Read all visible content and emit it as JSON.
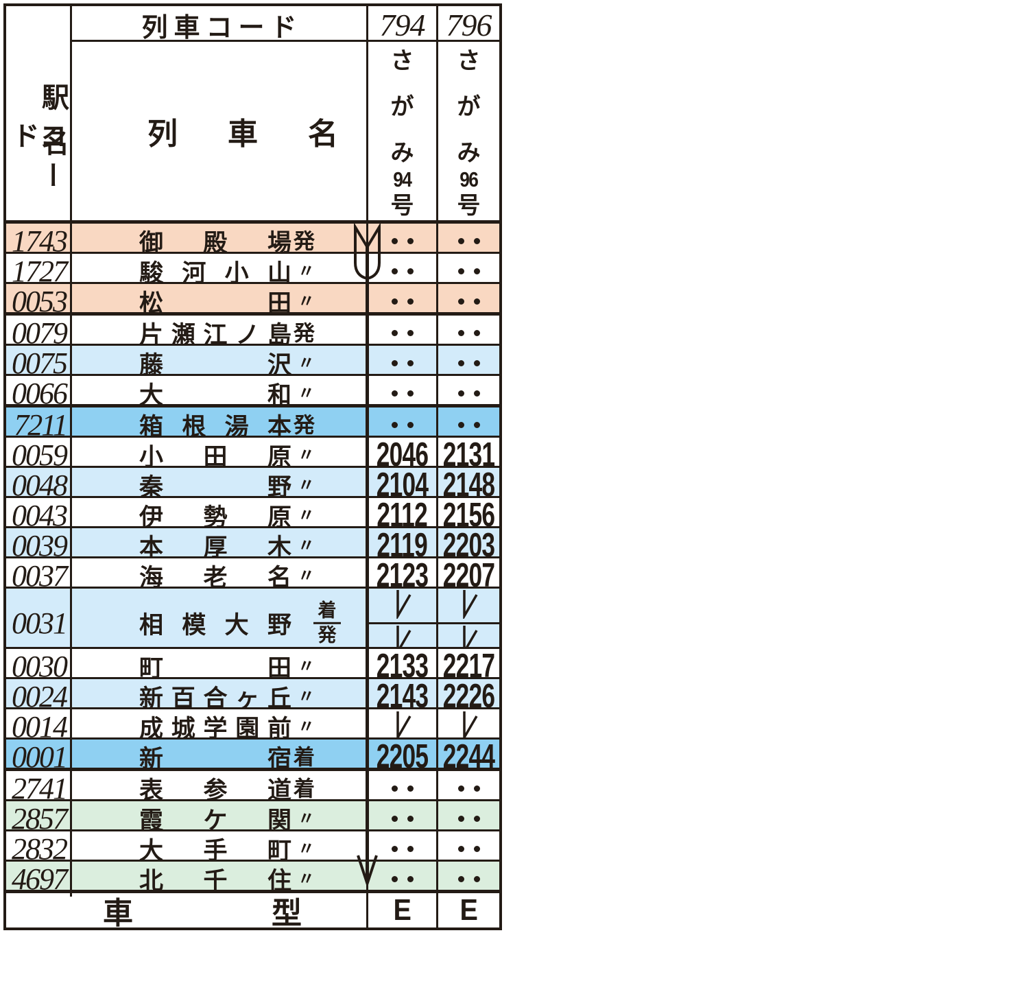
{
  "colors": {
    "ink": "#231b15",
    "row_white": "#ffffff",
    "row_peach": "#f9d8c2",
    "row_light_blue": "#d3ebfa",
    "row_blue": "#8fd0f2",
    "row_green": "#dbeede"
  },
  "header": {
    "station_code_label": "駅名コード",
    "station_code_label_columns": [
      "駅名",
      "コード"
    ],
    "train_code_label": "列車コード",
    "train_name_label": "列車名",
    "trains": [
      {
        "code": "794",
        "name": "さがみ94号",
        "name_parts": [
          "さ",
          "が",
          "み",
          "94",
          "号"
        ]
      },
      {
        "code": "796",
        "name": "さがみ96号",
        "name_parts": [
          "さ",
          "が",
          "み",
          "96",
          "号"
        ]
      }
    ]
  },
  "symbols": {
    "no_service": "・・",
    "pass": "レ",
    "ditto": "〃",
    "departure": "発",
    "arrival": "着",
    "arrival_departure": "着/発"
  },
  "rows": [
    {
      "code": "1743",
      "name": "御殿場",
      "marker": "発",
      "bg": "peach",
      "t1": "・・",
      "t2": "・・"
    },
    {
      "code": "1727",
      "name": "駿河小山",
      "marker": "〃",
      "bg": "white",
      "t1": "・・",
      "t2": "・・"
    },
    {
      "code": "0053",
      "name": "松田",
      "marker": "〃",
      "bg": "peach",
      "t1": "・・",
      "t2": "・・",
      "thick_bottom": true
    },
    {
      "code": "0079",
      "name": "片瀬江ノ島",
      "marker": "発",
      "bg": "white",
      "t1": "・・",
      "t2": "・・"
    },
    {
      "code": "0075",
      "name": "藤沢",
      "marker": "〃",
      "bg": "light_blue",
      "t1": "・・",
      "t2": "・・"
    },
    {
      "code": "0066",
      "name": "大和",
      "marker": "〃",
      "bg": "white",
      "t1": "・・",
      "t2": "・・",
      "thick_bottom": true
    },
    {
      "code": "7211",
      "name": "箱根湯本",
      "marker": "発",
      "bg": "blue",
      "t1": "・・",
      "t2": "・・"
    },
    {
      "code": "0059",
      "name": "小田原",
      "marker": "〃",
      "bg": "white",
      "t1": "2046",
      "t2": "2131"
    },
    {
      "code": "0048",
      "name": "秦野",
      "marker": "〃",
      "bg": "light_blue",
      "t1": "2104",
      "t2": "2148"
    },
    {
      "code": "0043",
      "name": "伊勢原",
      "marker": "〃",
      "bg": "white",
      "t1": "2112",
      "t2": "2156"
    },
    {
      "code": "0039",
      "name": "本厚木",
      "marker": "〃",
      "bg": "light_blue",
      "t1": "2119",
      "t2": "2203"
    },
    {
      "code": "0037",
      "name": "海老名",
      "marker": "〃",
      "bg": "white",
      "t1": "2123",
      "t2": "2207"
    },
    {
      "code": "0031",
      "name": "相模大野",
      "marker": "着/発",
      "bg": "light_blue",
      "split": true,
      "t1": [
        "レ",
        "レ"
      ],
      "t2": [
        "レ",
        "レ"
      ]
    },
    {
      "code": "0030",
      "name": "町田",
      "marker": "〃",
      "bg": "white",
      "t1": "2133",
      "t2": "2217"
    },
    {
      "code": "0024",
      "name": "新百合ヶ丘",
      "marker": "〃",
      "bg": "light_blue",
      "t1": "2143",
      "t2": "2226"
    },
    {
      "code": "0014",
      "name": "成城学園前",
      "marker": "〃",
      "bg": "white",
      "t1": "レ",
      "t2": "レ"
    },
    {
      "code": "0001",
      "name": "新宿",
      "marker": "着",
      "bg": "blue",
      "t1": "2205",
      "t2": "2244",
      "thick_bottom": true
    },
    {
      "code": "2741",
      "name": "表参道",
      "marker": "着",
      "bg": "white",
      "t1": "・・",
      "t2": "・・"
    },
    {
      "code": "2857",
      "name": "霞ケ関",
      "marker": "〃",
      "bg": "green",
      "t1": "・・",
      "t2": "・・"
    },
    {
      "code": "2832",
      "name": "大手町",
      "marker": "〃",
      "bg": "white",
      "t1": "・・",
      "t2": "・・"
    },
    {
      "code": "4697",
      "name": "北千住",
      "marker": "〃",
      "bg": "green",
      "t1": "・・",
      "t2": "・・",
      "thick_bottom": true
    }
  ],
  "footer": {
    "label": "車型",
    "values": [
      "E",
      "E"
    ]
  }
}
